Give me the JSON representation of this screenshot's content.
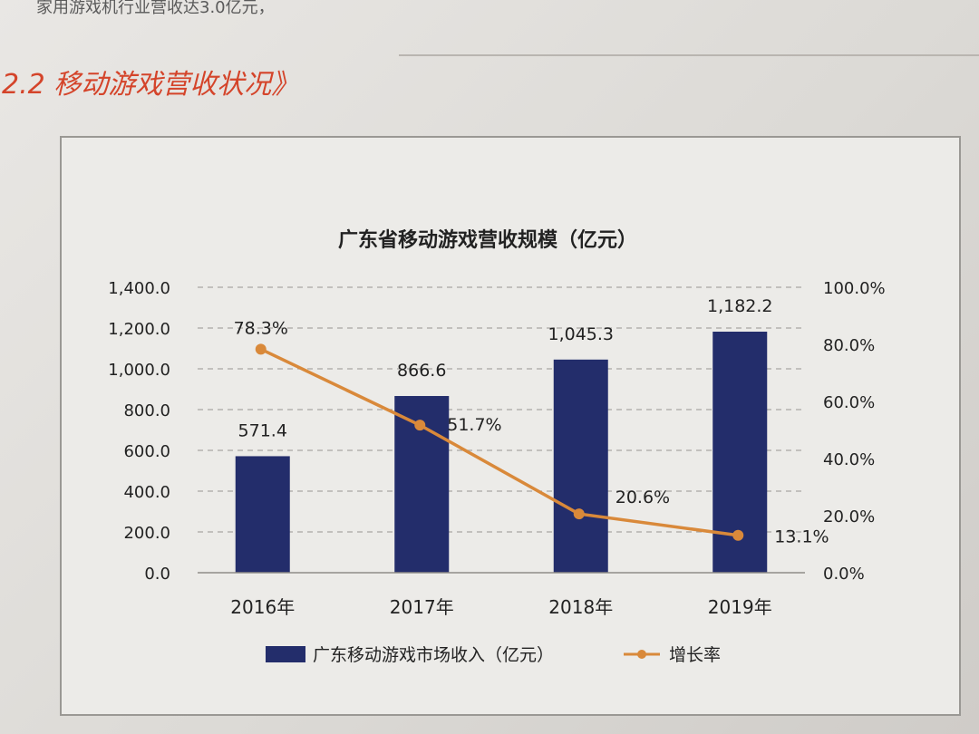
{
  "page": {
    "top_snippet": "家用游戏机行业营收达3.0亿元，",
    "section_title": "2.2 移动游戏营收状况》"
  },
  "colors": {
    "bar": "#232d6b",
    "line": "#d9893a",
    "grid": "#a9a7a3",
    "text": "#222222",
    "title_red": "#d4442a"
  },
  "chart_data": {
    "type": "bar",
    "title": "广东省移动游戏营收规模（亿元）",
    "categories": [
      "2016年",
      "2017年",
      "2018年",
      "2019年"
    ],
    "series": [
      {
        "name": "广东移动游戏市场收入（亿元）",
        "type": "bar",
        "axis": "left",
        "values": [
          571.4,
          866.6,
          1045.3,
          1182.2
        ],
        "labels": [
          "571.4",
          "866.6",
          "1,045.3",
          "1,182.2"
        ]
      },
      {
        "name": "增长率",
        "type": "line",
        "axis": "right",
        "values": [
          78.3,
          51.7,
          20.6,
          13.1
        ],
        "labels": [
          "78.3%",
          "51.7%",
          "20.6%",
          "13.1%"
        ]
      }
    ],
    "y_left": {
      "min": 0,
      "max": 1400,
      "step": 200,
      "ticks": [
        "0.0",
        "200.0",
        "400.0",
        "600.0",
        "800.0",
        "1,000.0",
        "1,200.0",
        "1,400.0"
      ]
    },
    "y_right": {
      "min": 0,
      "max": 100,
      "step": 20,
      "ticks": [
        "0.0%",
        "20.0%",
        "40.0%",
        "60.0%",
        "80.0%",
        "100.0%"
      ]
    },
    "grid": true,
    "legend_position": "bottom"
  }
}
